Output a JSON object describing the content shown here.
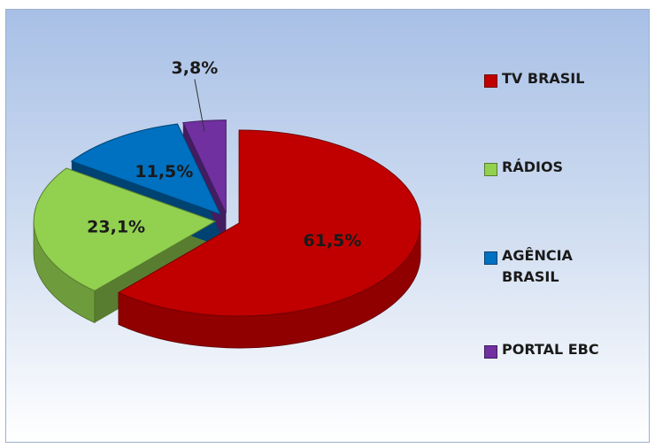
{
  "chart_data": {
    "type": "pie",
    "categories": [
      "TV BRASIL",
      "RÁDIOS",
      "AGÊNCIA BRASIL",
      "PORTAL EBC"
    ],
    "values": [
      61.5,
      23.1,
      11.5,
      3.8
    ],
    "value_labels": [
      "61,5%",
      "23,1%",
      "11,5%",
      "3,8%"
    ],
    "colors": [
      "#c00000",
      "#92d050",
      "#0070c0",
      "#7030a0"
    ],
    "legend": "right"
  }
}
